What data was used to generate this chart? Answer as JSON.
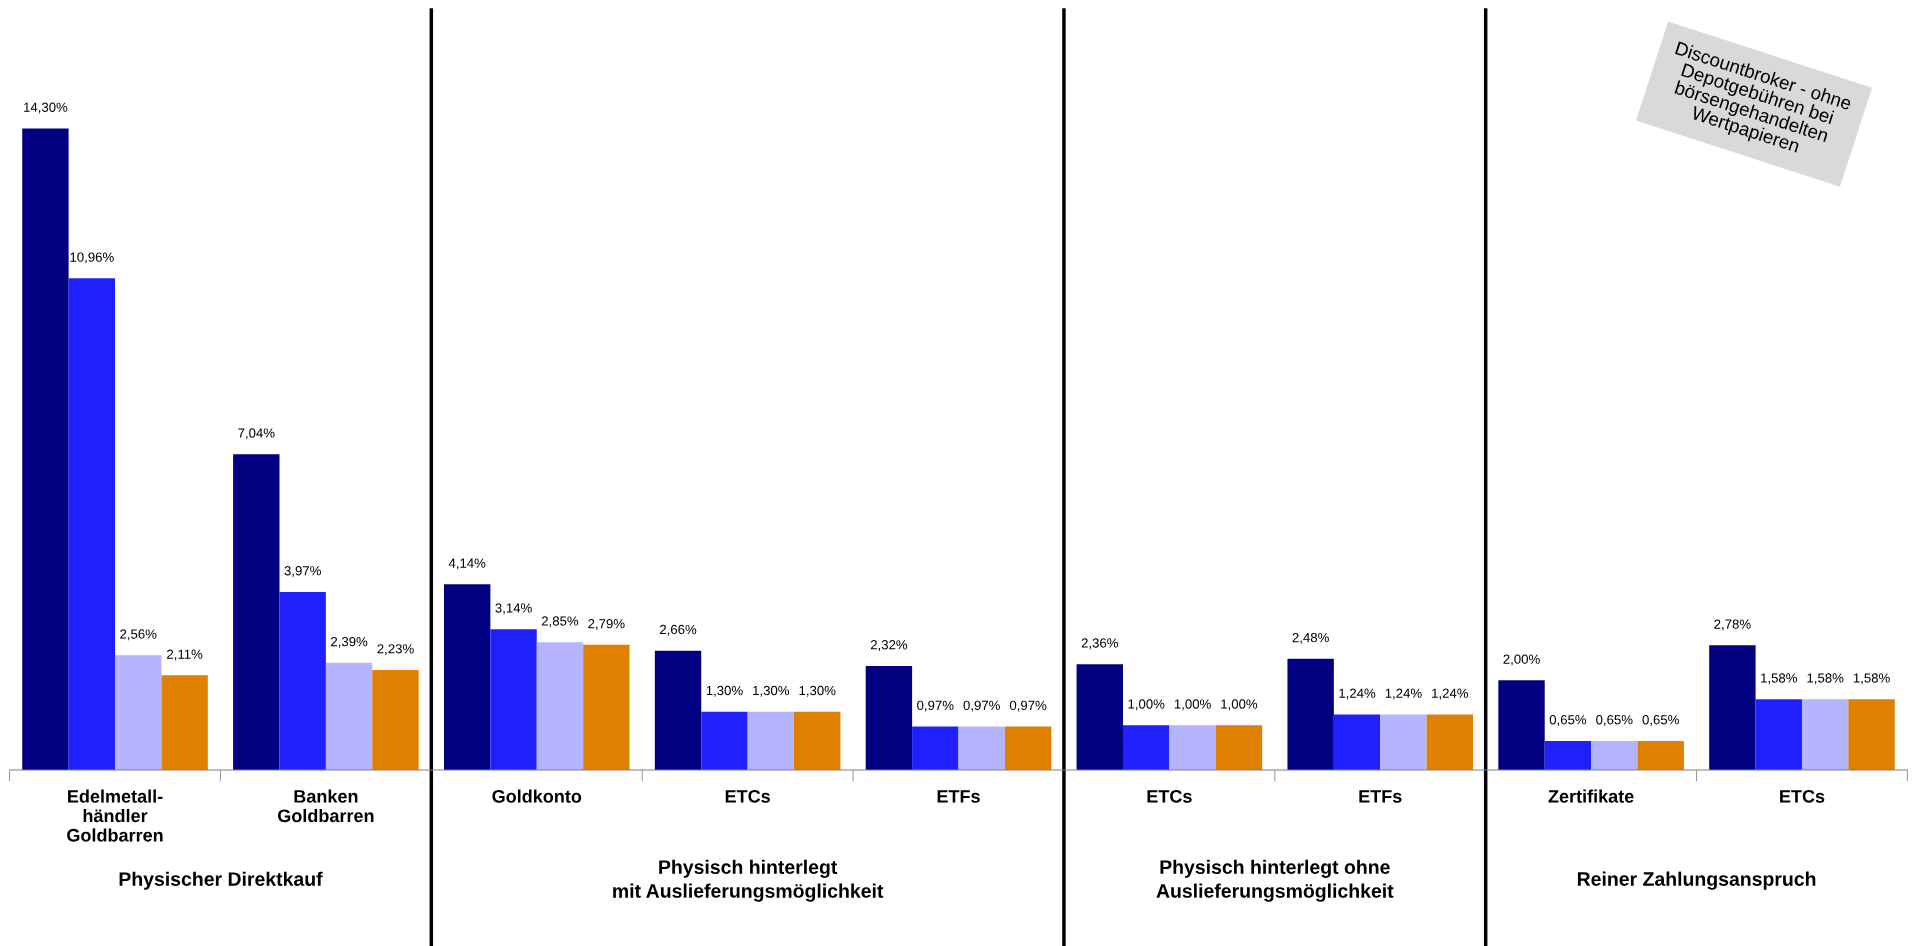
{
  "chart_data": {
    "type": "bar",
    "categories": [
      "Edelmetall-\nhändler\nGoldbarren",
      "Banken\nGoldbarren",
      "Goldkonto",
      "ETCs",
      "ETFs",
      "ETCs",
      "ETFs",
      "Zertifikate",
      "ETCs"
    ],
    "series": [
      {
        "color": "#000080",
        "values": [
          14.3,
          7.04,
          4.14,
          2.66,
          2.32,
          2.36,
          2.48,
          2.0,
          2.78
        ],
        "value_labels": [
          "14,30%",
          "7,04%",
          "4,14%",
          "2,66%",
          "2,32%",
          "2,36%",
          "2,48%",
          "2,00%",
          "2,78%"
        ]
      },
      {
        "color": "#2020ff",
        "values": [
          10.96,
          3.97,
          3.14,
          1.3,
          0.97,
          1.0,
          1.24,
          0.65,
          1.58
        ],
        "value_labels": [
          "10,96%",
          "3,97%",
          "3,14%",
          "1,30%",
          "0,97%",
          "1,00%",
          "1,24%",
          "0,65%",
          "1,58%"
        ]
      },
      {
        "color": "#b4b4ff",
        "values": [
          2.56,
          2.39,
          2.85,
          1.3,
          0.97,
          1.0,
          1.24,
          0.65,
          1.58
        ],
        "value_labels": [
          "2,56%",
          "2,39%",
          "2,85%",
          "1,30%",
          "0,97%",
          "1,00%",
          "1,24%",
          "0,65%",
          "1,58%"
        ]
      },
      {
        "color": "#e08000",
        "values": [
          2.11,
          2.23,
          2.79,
          1.3,
          0.97,
          1.0,
          1.24,
          0.65,
          1.58
        ],
        "value_labels": [
          "2,11%",
          "2,23%",
          "2,79%",
          "1,30%",
          "0,97%",
          "1,00%",
          "1,24%",
          "0,65%",
          "1,58%"
        ]
      }
    ],
    "annotations": [
      "Physischer Direktkauf",
      "Physisch hinterlegt\nmit Auslieferungsmöglichkeit",
      "Physisch hinterlegt ohne\nAuslieferungsmöglichkeit",
      "Reiner Zahlungsanspruch",
      "Discountbroker - ohne\nDepotgebühren bei\nbörsengehandelten\nWertpapieren"
    ],
    "grid": false,
    "legend": false
  }
}
